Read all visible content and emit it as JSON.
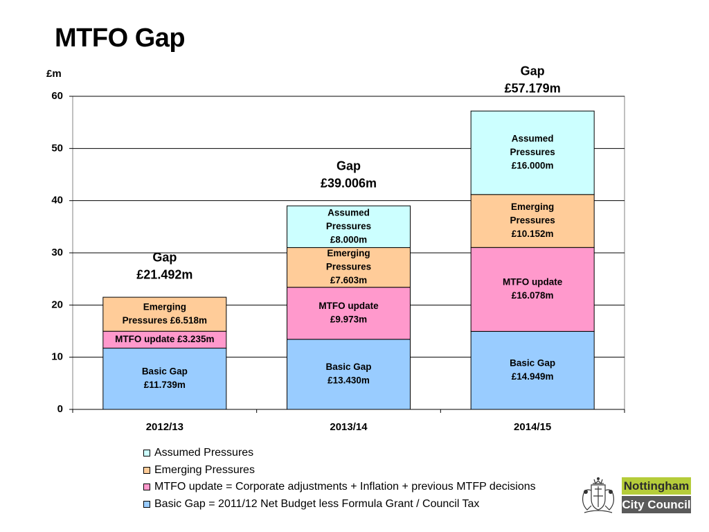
{
  "page": {
    "title": "MTFO Gap"
  },
  "chart_data": {
    "type": "bar",
    "stacked": true,
    "ylabel": "£m",
    "ylim": [
      0,
      60
    ],
    "yticks": [
      0,
      10,
      20,
      30,
      40,
      50,
      60
    ],
    "grid": true,
    "categories": [
      "2012/13",
      "2013/14",
      "2014/15"
    ],
    "series": [
      {
        "key": "basic",
        "color": "#99ccff",
        "values": [
          11.739,
          13.43,
          14.949
        ],
        "labels": [
          [
            "Basic Gap",
            "£11.739m"
          ],
          [
            "Basic Gap",
            "£13.430m"
          ],
          [
            "Basic Gap",
            "£14.949m"
          ]
        ]
      },
      {
        "key": "mtfo",
        "color": "#ff99cc",
        "values": [
          3.235,
          9.973,
          16.078
        ],
        "labels": [
          [
            "MTFO update £3.235m"
          ],
          [
            "MTFO update",
            "£9.973m"
          ],
          [
            "MTFO update",
            "£16.078m"
          ]
        ]
      },
      {
        "key": "emerging",
        "color": "#ffcc99",
        "values": [
          6.518,
          7.603,
          10.152
        ],
        "labels": [
          [
            "Emerging",
            "Pressures £6.518m"
          ],
          [
            "Emerging",
            "Pressures",
            "£7.603m"
          ],
          [
            "Emerging",
            "Pressures",
            "£10.152m"
          ]
        ]
      },
      {
        "key": "assumed",
        "color": "#ccffff",
        "values": [
          0,
          8.0,
          16.0
        ],
        "labels": [
          [],
          [
            "Assumed",
            "Pressures",
            "£8.000m"
          ],
          [
            "Assumed",
            "Pressures",
            "£16.000m"
          ]
        ]
      }
    ],
    "totals": [
      {
        "lines": [
          "Gap",
          "£21.492m"
        ]
      },
      {
        "lines": [
          "Gap",
          "£39.006m"
        ]
      },
      {
        "lines": [
          "Gap",
          "£57.179m"
        ]
      }
    ]
  },
  "legend": {
    "items": [
      {
        "label": "Assumed Pressures",
        "color": "#ccffff"
      },
      {
        "label": "Emerging Pressures",
        "color": "#ffcc99"
      },
      {
        "label": "MTFO update = Corporate adjustments + Inflation + previous MTFP decisions",
        "color": "#ff99cc"
      },
      {
        "label": "Basic Gap = 2011/12 Net Budget less Formula Grant / Council Tax",
        "color": "#99ccff"
      }
    ]
  },
  "logo": {
    "line1": "Nottingham",
    "line2": "City Council"
  }
}
